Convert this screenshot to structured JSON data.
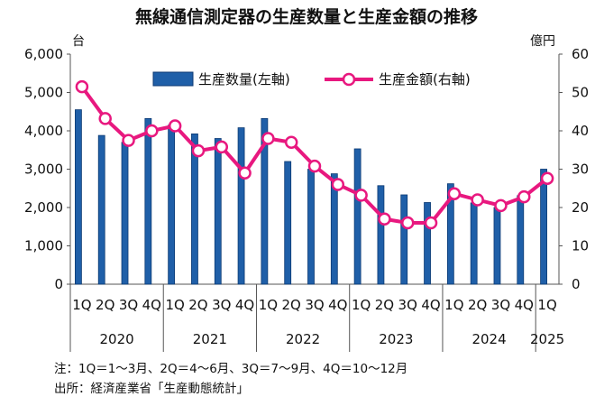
{
  "chart_data": {
    "type": "bar+line",
    "title": "無線通信測定器の生産数量と生産金額の推移",
    "left_axis_unit": "台",
    "right_axis_unit": "億円",
    "left_ticks": [
      "0",
      "1,000",
      "2,000",
      "3,000",
      "4,000",
      "5,000",
      "6,000"
    ],
    "right_ticks": [
      "0",
      "10",
      "20",
      "30",
      "40",
      "50",
      "60"
    ],
    "ylim_left": [
      0,
      6000
    ],
    "ylim_right": [
      0,
      60
    ],
    "categories": [
      "1Q",
      "2Q",
      "3Q",
      "4Q",
      "1Q",
      "2Q",
      "3Q",
      "4Q",
      "1Q",
      "2Q",
      "3Q",
      "4Q",
      "1Q",
      "2Q",
      "3Q",
      "4Q",
      "1Q",
      "2Q",
      "3Q",
      "4Q",
      "1Q"
    ],
    "years": [
      {
        "label": "2020",
        "start": 0,
        "count": 4
      },
      {
        "label": "2021",
        "start": 4,
        "count": 4
      },
      {
        "label": "2022",
        "start": 8,
        "count": 4
      },
      {
        "label": "2023",
        "start": 12,
        "count": 4
      },
      {
        "label": "2024",
        "start": 16,
        "count": 4
      },
      {
        "label": "2025",
        "start": 20,
        "count": 1
      }
    ],
    "series": [
      {
        "name": "生産数量(左軸)",
        "type": "bar",
        "axis": "left",
        "color": "#1f5fa8",
        "values": [
          4550,
          3880,
          3700,
          4320,
          4150,
          3920,
          3800,
          4080,
          4320,
          3200,
          3000,
          2880,
          3530,
          2570,
          2330,
          2130,
          2620,
          2120,
          2000,
          2310,
          3000
        ]
      },
      {
        "name": "生産金額(右軸)",
        "type": "line",
        "axis": "right",
        "color": "#e8187f",
        "values": [
          51.5,
          43.2,
          37.5,
          40.0,
          41.3,
          34.8,
          35.8,
          29.0,
          38.0,
          37.0,
          30.8,
          26.0,
          23.2,
          17.0,
          16.0,
          16.0,
          23.6,
          22.0,
          20.5,
          22.8,
          27.6
        ]
      }
    ],
    "legend": "top"
  },
  "notes": {
    "line1": "注：1Q＝1～3月、2Q＝4～6月、3Q＝7～9月、4Q＝10～12月",
    "line2": "出所：経済産業省「生産動態統計」"
  },
  "colors": {
    "bar": "#1f5fa8",
    "bar_edge": "#0c3a73",
    "line": "#e8187f"
  }
}
